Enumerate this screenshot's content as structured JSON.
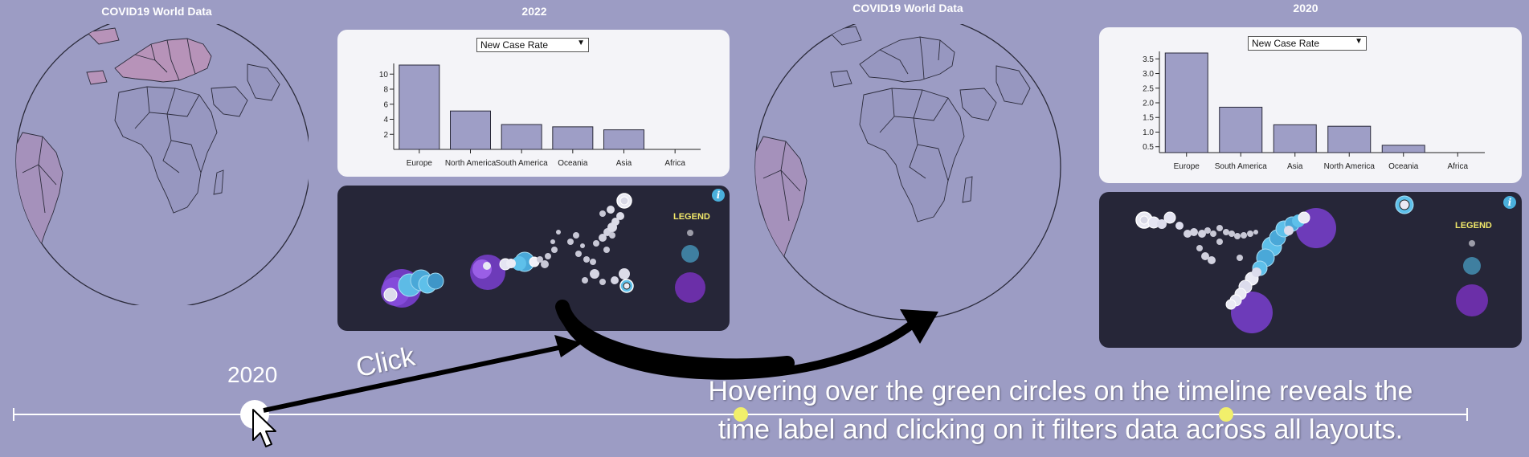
{
  "left": {
    "globe_title": "COVID19 World Data",
    "year_title": "2022",
    "select_value": "New Case Rate",
    "chart_data": {
      "type": "bar",
      "categories": [
        "Europe",
        "North America",
        "South America",
        "Oceania",
        "Asia",
        "Africa"
      ],
      "values": [
        11.2,
        5.1,
        3.3,
        3.0,
        2.6,
        0.0
      ],
      "ylim": [
        0,
        11.2
      ],
      "yticks": [
        "2",
        "4",
        "6",
        "8",
        "10"
      ]
    },
    "legend_label": "LEGEND"
  },
  "right": {
    "globe_title": "COVID19 World Data",
    "year_title": "2020",
    "select_value": "New Case Rate",
    "chart_data": {
      "type": "bar",
      "categories": [
        "Europe",
        "South America",
        "Asia",
        "North America",
        "Oceania",
        "Africa"
      ],
      "values": [
        3.7,
        1.85,
        1.25,
        1.2,
        0.55,
        0.3
      ],
      "ylim": [
        0.3,
        3.7
      ],
      "yticks": [
        "0.5",
        "1.0",
        "1.5",
        "2.0",
        "2.5",
        "3.0",
        "3.5"
      ]
    },
    "legend_label": "LEGEND"
  },
  "timeline": {
    "label": "2020",
    "click_label": "Click"
  },
  "caption": {
    "line1": "Hovering over the green circles on the timeline reveals the",
    "line2": "time label and clicking on it filters data across all layouts."
  },
  "colors": {
    "background": "#9c9cc4",
    "bar_fill": "#9e9ec6",
    "panel_dark": "#262638",
    "timeline_dot": "#f1ef6b",
    "legend_text": "#f2e96a"
  }
}
